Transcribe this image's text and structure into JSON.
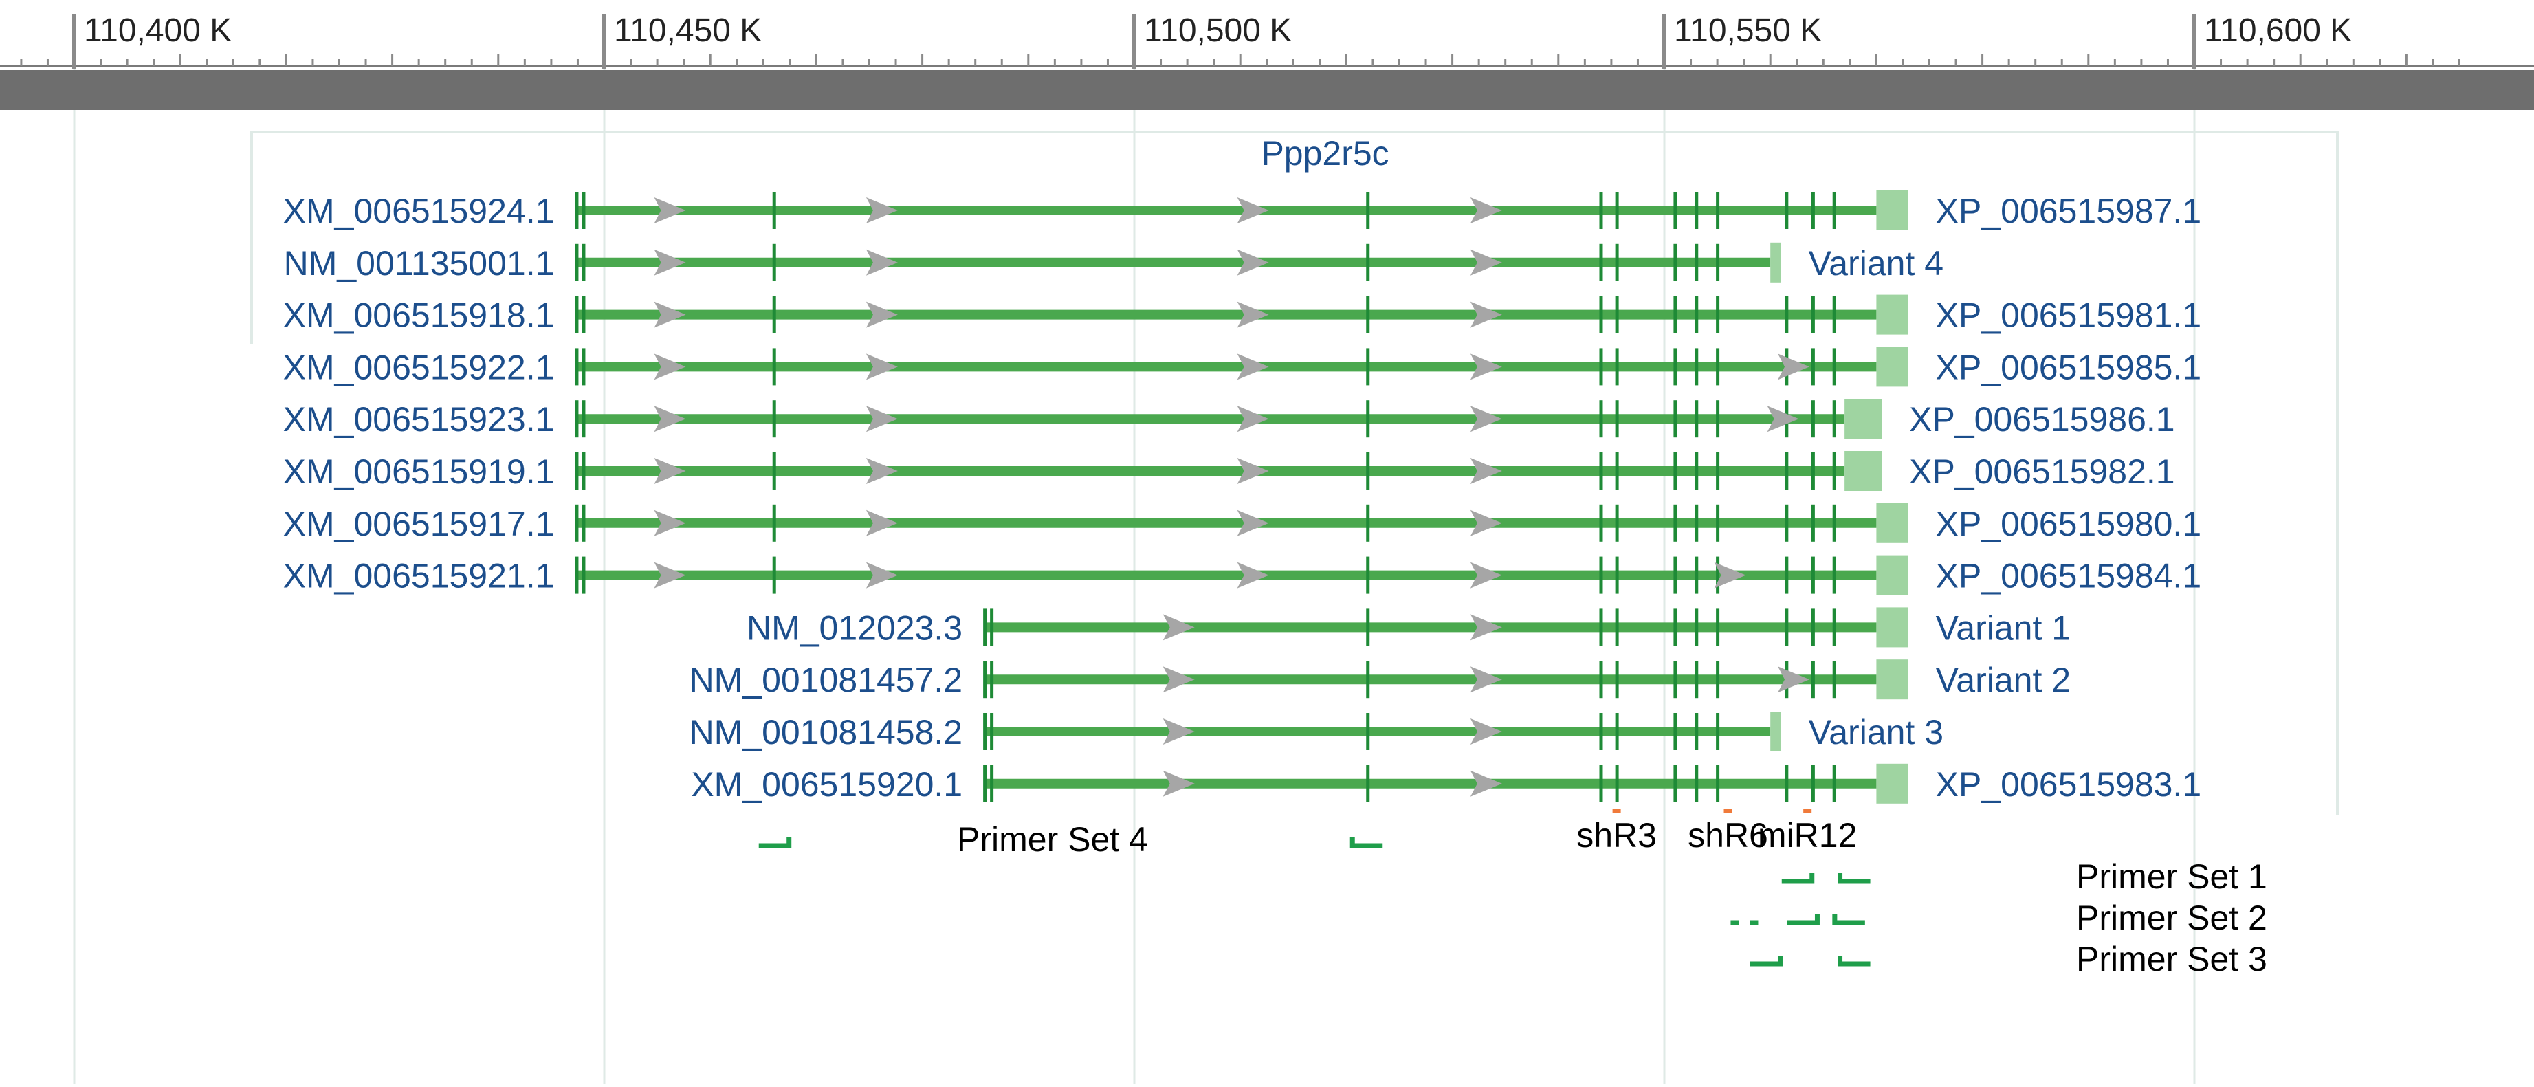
{
  "ruler": {
    "ticks": [
      {
        "position_k": 110400,
        "label": "110,400 K"
      },
      {
        "position_k": 110450,
        "label": "110,450 K"
      },
      {
        "position_k": 110500,
        "label": "110,500 K"
      },
      {
        "position_k": 110550,
        "label": "110,550 K"
      },
      {
        "position_k": 110600,
        "label": "110,600 K"
      }
    ]
  },
  "gene": {
    "name": "Ppp2r5c"
  },
  "colors": {
    "transcript": "#4aa84e",
    "exon": "#1e8a36",
    "utr": "#9fd4a1",
    "arrow": "#a6a6a6",
    "label": "#1c4e8c",
    "primer": "#1f9e4a",
    "site": "#f07a3a",
    "grid": "#dfeae6",
    "ruler_bar": "#6e6e6e"
  },
  "transcripts": [
    {
      "name": "XM_006515924.1",
      "product": "XP_006515987.1",
      "start": 110447.5,
      "end": 110573,
      "cds_end": 110570,
      "arrows": [
        110456,
        110476,
        110511,
        110533
      ]
    },
    {
      "name": "NM_001135001.1",
      "product": "Variant 4",
      "start": 110447.5,
      "end": 110561,
      "cds_end": 110560,
      "arrows": [
        110456,
        110476,
        110511,
        110533
      ]
    },
    {
      "name": "XM_006515918.1",
      "product": "XP_006515981.1",
      "start": 110447.5,
      "end": 110573,
      "cds_end": 110570,
      "arrows": [
        110456,
        110476,
        110511,
        110533
      ]
    },
    {
      "name": "XM_006515922.1",
      "product": "XP_006515985.1",
      "start": 110447.5,
      "end": 110573,
      "cds_end": 110570,
      "arrows": [
        110456,
        110476,
        110511,
        110533,
        110562
      ]
    },
    {
      "name": "XM_006515923.1",
      "product": "XP_006515986.1",
      "start": 110447.5,
      "end": 110570.5,
      "cds_end": 110567,
      "arrows": [
        110456,
        110476,
        110511,
        110533,
        110561
      ]
    },
    {
      "name": "XM_006515919.1",
      "product": "XP_006515982.1",
      "start": 110447.5,
      "end": 110570.5,
      "cds_end": 110567,
      "arrows": [
        110456,
        110476,
        110511,
        110533
      ]
    },
    {
      "name": "XM_006515917.1",
      "product": "XP_006515980.1",
      "start": 110447.5,
      "end": 110573,
      "cds_end": 110570,
      "arrows": [
        110456,
        110476,
        110511,
        110533
      ]
    },
    {
      "name": "XM_006515921.1",
      "product": "XP_006515984.1",
      "start": 110447.5,
      "end": 110573,
      "cds_end": 110570,
      "arrows": [
        110456,
        110476,
        110511,
        110533,
        110556
      ]
    },
    {
      "name": "NM_012023.3",
      "product": "Variant 1",
      "start": 110486,
      "end": 110573,
      "cds_end": 110570,
      "arrows": [
        110504,
        110533
      ]
    },
    {
      "name": "NM_001081457.2",
      "product": "Variant 2",
      "start": 110486,
      "end": 110573,
      "cds_end": 110570,
      "arrows": [
        110504,
        110533,
        110562
      ]
    },
    {
      "name": "NM_001081458.2",
      "product": "Variant 3",
      "start": 110486,
      "end": 110561,
      "cds_end": 110560,
      "arrows": [
        110504,
        110533
      ]
    },
    {
      "name": "XM_006515920.1",
      "product": "XP_006515983.1",
      "start": 110486,
      "end": 110573,
      "cds_end": 110570,
      "arrows": [
        110504,
        110533
      ]
    }
  ],
  "exon_positions": [
    110448,
    110466,
    110522,
    110544,
    110545.5,
    110551,
    110553,
    110555,
    110561.5,
    110564,
    110566,
    110570
  ],
  "sites": [
    {
      "label": "shR3",
      "position": 110545.5
    },
    {
      "label": "shR6",
      "position": 110556
    },
    {
      "label": "miR12",
      "position": 110563.5
    }
  ],
  "primer_labels": [
    "Primer Set 4",
    "Primer Set 1",
    "Primer Set 2",
    "Primer Set 3"
  ],
  "primers": [
    {
      "set": "Primer Set 4",
      "forward": 110466,
      "reverse": 110522
    },
    {
      "set": "Primer Set 1",
      "forward": 110562.5,
      "reverse": 110568
    },
    {
      "set": "Primer Set 2",
      "forward": 110563,
      "reverse": 110567.5
    },
    {
      "set": "Primer Set 3",
      "forward": 110559.5,
      "reverse": 110568
    }
  ]
}
